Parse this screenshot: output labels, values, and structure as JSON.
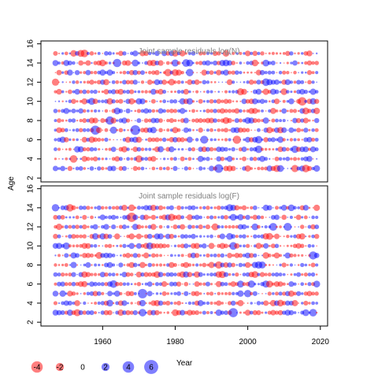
{
  "chart_data": {
    "type": "bubble-scatter",
    "ylabel": "Age",
    "legend_title": "Year",
    "legend_values": [
      -4,
      -2,
      0,
      2,
      4,
      6
    ],
    "legend_labels": [
      "-4",
      "-2",
      "0",
      "2",
      "4",
      "6"
    ],
    "x_ticks": [
      1960,
      1980,
      2000,
      2020
    ],
    "x_tick_labels": [
      "1960",
      "1980",
      "2000",
      "2020"
    ],
    "y_ticks": [
      2,
      4,
      6,
      8,
      10,
      12,
      14,
      16
    ],
    "y_tick_labels": [
      "2",
      "4",
      "6",
      "8",
      "10",
      "12",
      "14",
      "16"
    ],
    "colors": {
      "positive": "#0000FF",
      "negative": "#FF0000",
      "opacity": 0.5
    },
    "panels": [
      {
        "title": "Joint sample residuals log(N)",
        "xlim": [
          1943,
          2022
        ],
        "ylim": [
          1.6,
          16.3
        ],
        "years": [
          1947,
          2019
        ],
        "ages": [
          3,
          15
        ],
        "seed": 7
      },
      {
        "title": "Joint sample residuals log(F)",
        "xlim": [
          1943,
          2022
        ],
        "ylim": [
          1.6,
          16.3
        ],
        "years": [
          1947,
          2019
        ],
        "ages": [
          3,
          14
        ],
        "seed": 19
      }
    ]
  }
}
